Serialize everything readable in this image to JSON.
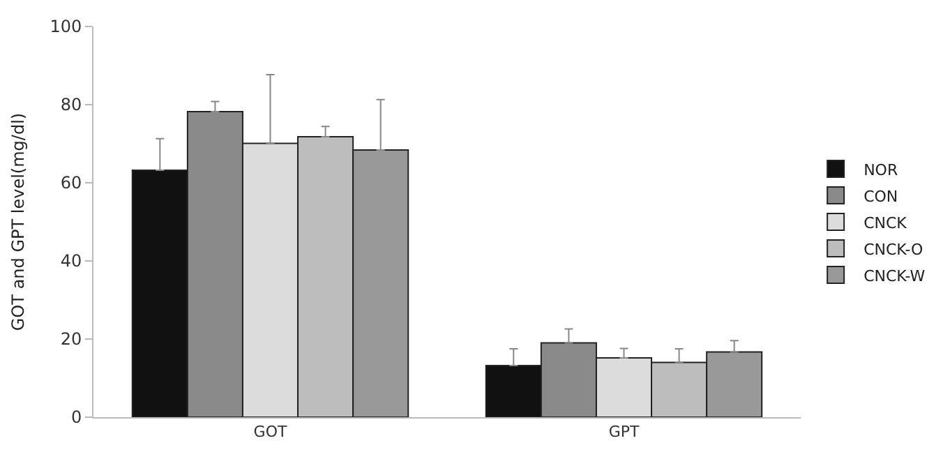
{
  "chart_data": {
    "type": "bar",
    "ylabel": "GOT and GPT level(mg/dl)",
    "categories": [
      "GOT",
      "GPT"
    ],
    "series": [
      {
        "name": "NOR",
        "color": "#111111",
        "values": [
          63.2,
          13.2
        ],
        "errors": [
          [
            63.2,
            71.3
          ],
          [
            13.2,
            17.5
          ]
        ]
      },
      {
        "name": "CON",
        "color": "#8a8a8a",
        "values": [
          78.2,
          19.0
        ],
        "errors": [
          [
            78.2,
            80.8
          ],
          [
            19.0,
            22.6
          ]
        ]
      },
      {
        "name": "CNCK",
        "color": "#dcdcdc",
        "values": [
          70.1,
          15.2
        ],
        "errors": [
          [
            70.1,
            87.7
          ],
          [
            15.2,
            17.6
          ]
        ]
      },
      {
        "name": "CNCK-O",
        "color": "#bdbdbd",
        "values": [
          71.8,
          14.0
        ],
        "errors": [
          [
            71.8,
            74.4
          ],
          [
            14.0,
            17.5
          ]
        ]
      },
      {
        "name": "CNCK-W",
        "color": "#999999",
        "values": [
          68.4,
          16.7
        ],
        "errors": [
          [
            68.4,
            81.3
          ],
          [
            16.7,
            19.6
          ]
        ]
      }
    ],
    "ylim": [
      0,
      100
    ],
    "yticks": [
      0,
      20,
      40,
      60,
      80,
      100
    ],
    "grid": false,
    "legend": "right"
  }
}
